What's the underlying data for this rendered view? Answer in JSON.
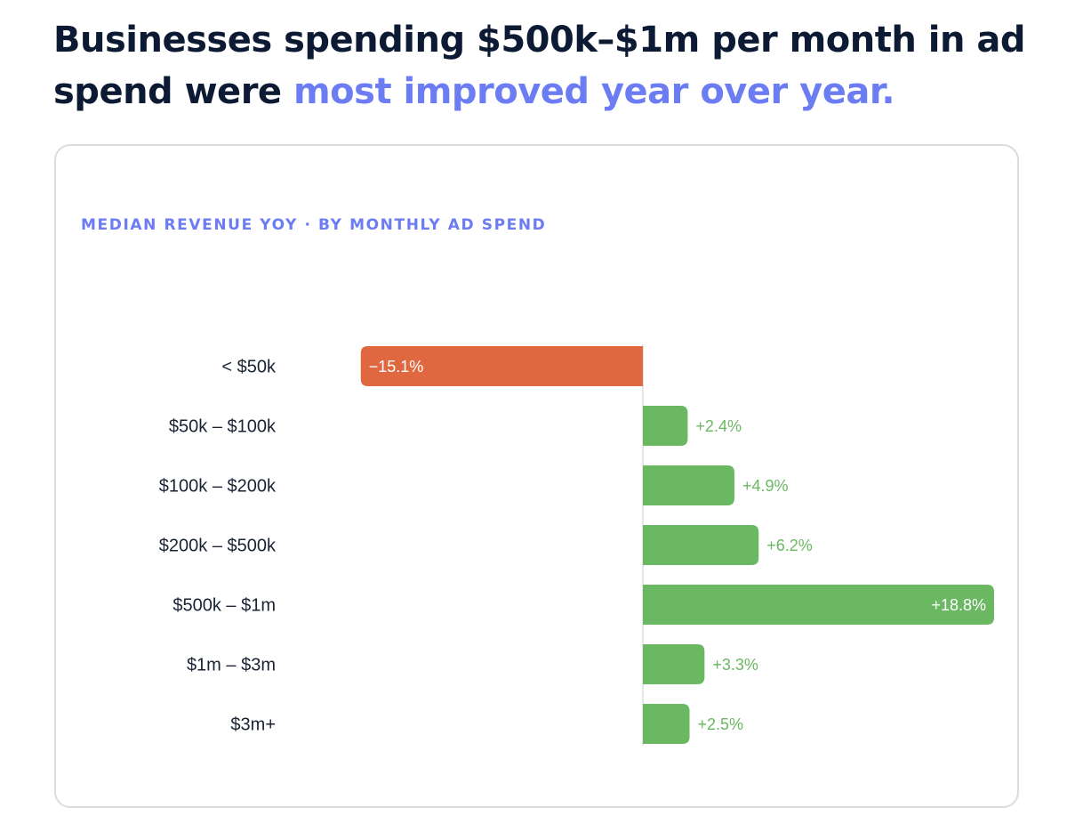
{
  "headline": {
    "part1": "Businesses spending $500k–$1m per month in ad spend were ",
    "part2": "most improved year over year."
  },
  "colors": {
    "negative": "#e06840",
    "positive": "#6bb863",
    "accent": "#6c7cf2",
    "text": "#0c1a33"
  },
  "chart_data": {
    "type": "bar",
    "orientation": "horizontal",
    "title": "MEDIAN REVENUE YOY · BY MONTHLY AD SPEND",
    "categories": [
      "< $50k",
      "$50k – $100k",
      "$100k – $200k",
      "$200k – $500k",
      "$500k – $1m",
      "$1m – $3m",
      "$3m+"
    ],
    "values": [
      -15.1,
      2.4,
      4.9,
      6.2,
      18.8,
      3.3,
      2.5
    ],
    "value_labels": [
      "−15.1%",
      "+2.4%",
      "+4.9%",
      "+6.2%",
      "+18.8%",
      "+3.3%",
      "+2.5%"
    ],
    "unit": "%",
    "xlabel": "",
    "ylabel": "",
    "grid": false,
    "legend": "none"
  }
}
